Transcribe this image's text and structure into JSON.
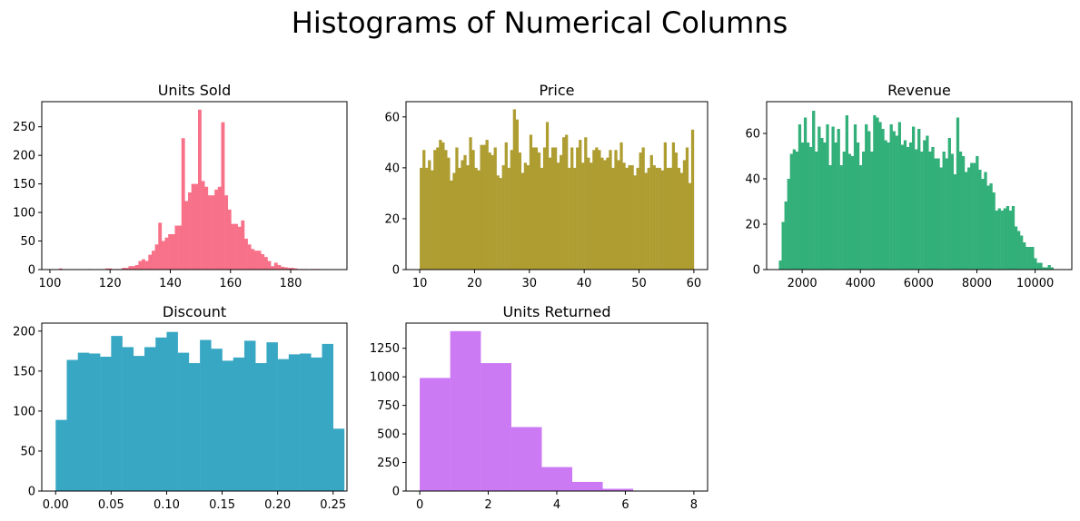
{
  "figure": {
    "title": "Histograms of Numerical Columns"
  },
  "chart_data": [
    {
      "type": "bar",
      "title": "Units Sold",
      "color": "#f77189",
      "xlim": [
        97.3,
        198.7
      ],
      "ylim": [
        0,
        294
      ],
      "xticks": [
        100,
        120,
        140,
        160,
        180
      ],
      "yticks": [
        0,
        50,
        100,
        150,
        200,
        250
      ],
      "bin_start": 103,
      "bin_width": 1.1,
      "values": [
        2,
        0,
        0,
        0,
        0,
        0,
        0,
        0,
        0,
        1,
        0,
        0,
        0,
        0,
        2,
        2,
        0,
        1,
        1,
        3,
        3,
        6,
        6,
        8,
        15,
        18,
        15,
        26,
        33,
        44,
        82,
        50,
        56,
        62,
        62,
        77,
        77,
        230,
        120,
        135,
        150,
        150,
        280,
        155,
        145,
        130,
        130,
        140,
        145,
        258,
        130,
        105,
        80,
        80,
        75,
        86,
        54,
        44,
        36,
        33,
        33,
        27,
        22,
        15,
        6,
        12,
        8,
        5,
        4,
        3,
        3,
        2,
        1,
        1,
        1,
        0,
        1,
        1,
        1
      ],
      "xlabel": "",
      "ylabel": ""
    },
    {
      "type": "bar",
      "title": "Price",
      "color": "#ae9d31",
      "xlim": [
        7.5,
        62.5
      ],
      "ylim": [
        0,
        66
      ],
      "xticks": [
        10,
        20,
        30,
        40,
        50,
        60
      ],
      "yticks": [
        0,
        20,
        40,
        60
      ],
      "bin_start": 10,
      "bin_width": 0.5,
      "values": [
        40,
        47,
        40,
        43,
        39,
        47,
        48,
        51,
        50,
        47,
        44,
        35,
        38,
        48,
        40,
        43,
        45,
        41,
        52,
        47,
        40,
        39,
        49,
        49,
        51,
        46,
        45,
        48,
        37,
        36,
        41,
        50,
        40,
        47,
        63,
        59,
        46,
        38,
        42,
        41,
        53,
        48,
        48,
        46,
        40,
        48,
        58,
        44,
        48,
        48,
        42,
        45,
        52,
        53,
        40,
        48,
        40,
        48,
        51,
        42,
        52,
        44,
        42,
        47,
        48,
        47,
        44,
        43,
        44,
        47,
        40,
        47,
        43,
        50,
        42,
        40,
        41,
        41,
        37,
        40,
        46,
        48,
        38,
        40,
        45,
        41,
        40,
        40,
        39,
        50,
        40,
        40,
        50,
        46,
        40,
        38,
        43,
        48,
        34,
        55
      ],
      "xlabel": "",
      "ylabel": ""
    },
    {
      "type": "bar",
      "title": "Revenue",
      "color": "#33b07a",
      "xlim": [
        780,
        11260
      ],
      "ylim": [
        0,
        74
      ],
      "xticks": [
        2000,
        4000,
        6000,
        8000,
        10000
      ],
      "yticks": [
        0,
        20,
        40,
        60
      ],
      "bin_start": 1200,
      "bin_width": 95.2,
      "values": [
        4,
        21,
        30,
        40,
        51,
        53,
        52,
        64,
        56,
        67,
        56,
        54,
        70,
        52,
        63,
        58,
        56,
        64,
        46,
        63,
        56,
        62,
        46,
        52,
        68,
        51,
        50,
        64,
        56,
        46,
        52,
        64,
        61,
        52,
        68,
        67,
        65,
        62,
        57,
        56,
        64,
        61,
        59,
        65,
        55,
        57,
        54,
        56,
        63,
        53,
        62,
        52,
        57,
        59,
        52,
        54,
        49,
        49,
        45,
        52,
        49,
        58,
        51,
        42,
        67,
        52,
        50,
        43,
        45,
        47,
        47,
        50,
        44,
        40,
        43,
        37,
        38,
        34,
        26,
        27,
        26,
        27,
        28,
        26,
        28,
        19,
        17,
        15,
        12,
        10,
        10,
        10,
        5,
        3,
        3,
        1,
        1,
        2,
        1
      ],
      "xlabel": "",
      "ylabel": ""
    },
    {
      "type": "bar",
      "title": "Discount",
      "color": "#38a7c4",
      "xlim": [
        -0.0125,
        0.2625
      ],
      "ylim": [
        0,
        210
      ],
      "xticks": [
        0.0,
        0.05,
        0.1,
        0.15,
        0.2,
        0.25
      ],
      "ytick_values": [
        0,
        50,
        100,
        150,
        200
      ],
      "yticks": [
        0,
        50,
        100,
        150,
        200
      ],
      "xtick_labels": [
        "0.00",
        "0.05",
        "0.10",
        "0.15",
        "0.20",
        "0.25"
      ],
      "bin_start": 0,
      "bin_width": 0.01,
      "values": [
        89,
        164,
        173,
        172,
        168,
        194,
        180,
        169,
        180,
        192,
        199,
        173,
        160,
        189,
        178,
        163,
        167,
        188,
        160,
        186,
        165,
        171,
        172,
        167,
        184,
        78
      ],
      "xlabel": "",
      "ylabel": ""
    },
    {
      "type": "bar",
      "title": "Units Returned",
      "color": "#cc7af4",
      "xlim": [
        -0.4,
        8.4
      ],
      "ylim": [
        0,
        1470
      ],
      "xticks": [
        0,
        2,
        4,
        6,
        8
      ],
      "yticks": [
        0,
        250,
        500,
        750,
        1000,
        1250
      ],
      "bin_start": 0,
      "bin_width": 0.889,
      "values": [
        990,
        1400,
        1120,
        560,
        210,
        80,
        20,
        0,
        2
      ],
      "xlabel": "",
      "ylabel": ""
    }
  ]
}
